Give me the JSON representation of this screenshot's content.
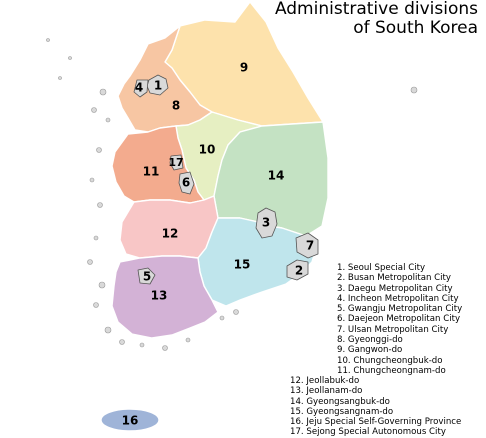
{
  "title": {
    "line1": "Administrative divisions",
    "line2": "of South Korea"
  },
  "colors": {
    "gangwon": "#fde2ac",
    "gyeonggi": "#f7c6a3",
    "chungbuk": "#e6efc2",
    "chungnam": "#f3ab8e",
    "gyeongbuk": "#c4e2c3",
    "jeonbuk": "#f8c6c6",
    "gyeongnam": "#bfe5ec",
    "jeonnam": "#d3b2d6",
    "jeju": "#9fb4d8",
    "metro": "#d9d9d9",
    "islands": "#d9d9d9"
  },
  "map_labels": {
    "r1": "1",
    "r2": "2",
    "r3": "3",
    "r4": "4",
    "r5": "5",
    "r6": "6",
    "r7": "7",
    "r8": "8",
    "r9": "9",
    "r10": "10",
    "r11": "11",
    "r12": "12",
    "r13": "13",
    "r14": "14",
    "r15": "15",
    "r16": "16",
    "r17": "17"
  },
  "legend_right": [
    "1. Seoul Special City",
    "2. Busan Metropolitan City",
    "3. Daegu Metropolitan City",
    "4. Incheon Metropolitan City",
    "5. Gwangju Metropolitan City",
    "6. Daejeon Metropolitan City",
    "7. Ulsan Metropolitan City",
    "8. Gyeonggi-do",
    "9. Gangwon-do",
    "10. Chungcheongbuk-do",
    "11. Chungcheongnam-do"
  ],
  "legend_left": [
    "12. Jeollabuk-do",
    "13. Jeollanam-do",
    "14. Gyeongsangbuk-do",
    "15. Gyeongsangnam-do",
    "16. Jeju Special Self-Governing Province",
    "17. Sejong Special Autonomous City"
  ]
}
